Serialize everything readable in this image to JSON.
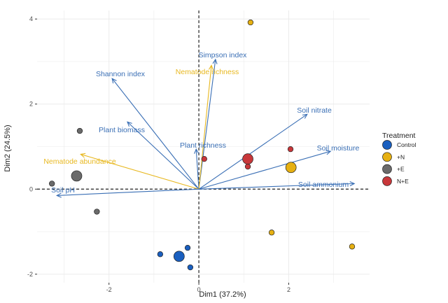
{
  "chart_data": {
    "type": "scatter",
    "subtype": "pca-biplot",
    "xlabel": "Dim1 (37.2%)",
    "ylabel": "Dim2 (24.5%)",
    "xlim": [
      -3.6,
      3.8
    ],
    "ylim": [
      -2.2,
      4.2
    ],
    "x_ticks": [
      -2,
      0,
      2
    ],
    "y_ticks": [
      -2,
      0,
      2,
      4
    ],
    "grid": true,
    "reference_lines": "dashed at x=0 and y=0",
    "legend": {
      "title": "Treatment",
      "placement": "right",
      "entries": [
        {
          "label": "Control",
          "color": "#1a5fbf"
        },
        {
          "label": "+N",
          "color": "#e6b012"
        },
        {
          "label": "+E",
          "color": "#6a6a6a"
        },
        {
          "label": "N+E",
          "color": "#c8373a"
        }
      ]
    },
    "points": [
      {
        "group": "Control",
        "x": -0.86,
        "y": -1.53,
        "centroid": false
      },
      {
        "group": "Control",
        "x": -0.25,
        "y": -1.38,
        "centroid": false
      },
      {
        "group": "Control",
        "x": -0.19,
        "y": -1.84,
        "centroid": false
      },
      {
        "group": "Control",
        "x": -0.44,
        "y": -1.58,
        "centroid": true
      },
      {
        "group": "+N",
        "x": 1.15,
        "y": 3.92,
        "centroid": false
      },
      {
        "group": "+N",
        "x": 1.62,
        "y": -1.02,
        "centroid": false
      },
      {
        "group": "+N",
        "x": 3.41,
        "y": -1.35,
        "centroid": false
      },
      {
        "group": "+N",
        "x": 2.05,
        "y": 0.51,
        "centroid": true
      },
      {
        "group": "+E",
        "x": -2.65,
        "y": 1.37,
        "centroid": false
      },
      {
        "group": "+E",
        "x": -3.27,
        "y": 0.13,
        "centroid": false
      },
      {
        "group": "+E",
        "x": -2.27,
        "y": -0.53,
        "centroid": false
      },
      {
        "group": "+E",
        "x": -2.72,
        "y": 0.31,
        "centroid": true
      },
      {
        "group": "N+E",
        "x": 0.12,
        "y": 0.71,
        "centroid": false
      },
      {
        "group": "N+E",
        "x": 1.09,
        "y": 0.53,
        "centroid": false
      },
      {
        "group": "N+E",
        "x": 2.04,
        "y": 0.94,
        "centroid": false
      },
      {
        "group": "N+E",
        "x": 1.09,
        "y": 0.71,
        "centroid": true
      }
    ],
    "arrows": [
      {
        "label": "Shannon index",
        "x": -1.93,
        "y": 2.6,
        "color": "#3a6fb5"
      },
      {
        "label": "Plant biomass",
        "x": -1.59,
        "y": 1.58,
        "color": "#3a6fb5"
      },
      {
        "label": "Plant richness",
        "x": -0.06,
        "y": 0.94,
        "color": "#3a6fb5"
      },
      {
        "label": "Simpson index",
        "x": 0.37,
        "y": 3.05,
        "color": "#3a6fb5"
      },
      {
        "label": "Nematode richness",
        "x": 0.28,
        "y": 2.91,
        "color": "#e8b820"
      },
      {
        "label": "Nematode abundance",
        "x": -2.63,
        "y": 0.82,
        "color": "#e8b820"
      },
      {
        "label": "Soil pH",
        "x": -3.16,
        "y": -0.15,
        "color": "#3a6fb5"
      },
      {
        "label": "Soil nitrate",
        "x": 2.41,
        "y": 1.76,
        "color": "#3a6fb5"
      },
      {
        "label": "Soil moisture",
        "x": 2.93,
        "y": 0.89,
        "color": "#3a6fb5"
      },
      {
        "label": "Soil ammonium",
        "x": 3.46,
        "y": 0.13,
        "color": "#3a6fb5"
      }
    ]
  }
}
